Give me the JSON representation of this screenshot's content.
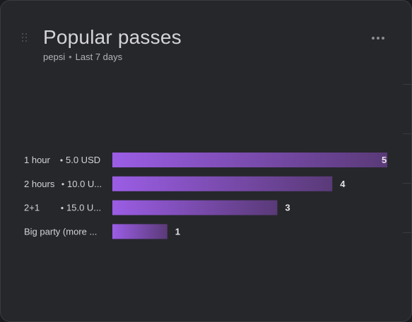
{
  "widget": {
    "title": "Popular passes",
    "subtitle_source": "pepsi",
    "subtitle_separator": "•",
    "subtitle_range": "Last 7 days",
    "menu_icon": "more-horizontal-icon",
    "drag_icon": "drag-handle-icon"
  },
  "colors": {
    "card_bg": "#26272b",
    "bar_start": "#9b5de5",
    "bar_end": "#5a3a78",
    "text": "#d2d3d6"
  },
  "chart_data": {
    "type": "bar",
    "orientation": "horizontal",
    "categories": [
      {
        "name": "1 hour",
        "price": "5.0 USD"
      },
      {
        "name": "2 hours",
        "price": "10.0 U..."
      },
      {
        "name": "2+1",
        "price": "15.0  U..."
      },
      {
        "name": "Big party (more ...",
        "price": ""
      }
    ],
    "values": [
      5,
      4,
      3,
      1
    ],
    "xlim": [
      0,
      5
    ],
    "grid": false,
    "legend": "none"
  }
}
